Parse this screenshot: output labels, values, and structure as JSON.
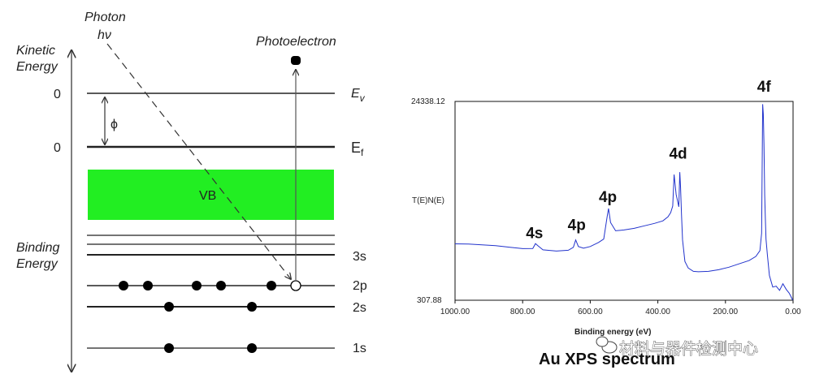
{
  "energy_diagram": {
    "photon_label": "Photon",
    "photon_symbol": "hν",
    "photoelectron_label": "Photoelectron",
    "kinetic_energy_label": [
      "Kinetic",
      "Energy"
    ],
    "binding_energy_label": [
      "Binding",
      "Energy"
    ],
    "zero_labels": [
      "0",
      "0"
    ],
    "vacuum_level_label": "E",
    "vacuum_level_subscript": "v",
    "fermi_level_label": "E",
    "fermi_level_subscript": "f",
    "work_function_symbol": "ϕ",
    "valence_band_label": "VB",
    "valence_band_color": "#22ee22",
    "levels": [
      {
        "label": "3s",
        "electrons": 0
      },
      {
        "label": "2p",
        "electrons": 5,
        "vacancies": 1
      },
      {
        "label": "2s",
        "electrons": 2
      },
      {
        "label": "1s",
        "electrons": 2
      }
    ]
  },
  "chart_data": {
    "type": "line",
    "title": "Au XPS spectrum",
    "xlabel": "Binding energy (eV)",
    "ylabel": "T(E)N(E)",
    "xlim": [
      1000,
      0
    ],
    "ylim": [
      307.88,
      24338.12
    ],
    "x_reversed": true,
    "x_tick_labels": [
      "1000.00",
      "800.00",
      "600.00",
      "400.00",
      "200.00",
      "0.00"
    ],
    "y_tick_labels": [
      "24338.12",
      "307.88"
    ],
    "line_color": "#2233cc",
    "grid": false,
    "series": [
      {
        "x": [
          1000,
          960,
          920,
          880,
          840,
          800,
          770,
          762,
          755,
          740,
          700,
          665,
          650,
          643,
          635,
          620,
          600,
          575,
          560,
          550,
          546,
          540,
          525,
          500,
          470,
          440,
          410,
          385,
          370,
          362,
          356,
          352,
          346,
          338,
          335,
          333,
          330,
          327,
          320,
          310,
          295,
          280,
          250,
          220,
          190,
          160,
          130,
          110,
          98,
          93,
          90,
          88,
          86,
          84,
          82,
          80,
          76,
          70,
          60,
          50,
          40,
          30,
          20,
          12,
          8,
          5,
          2,
          0
        ],
        "y": [
          7120,
          7100,
          7000,
          6900,
          6720,
          6550,
          6560,
          7150,
          6900,
          6400,
          6250,
          6350,
          6700,
          7600,
          6800,
          6600,
          6800,
          7300,
          7700,
          10400,
          11400,
          9700,
          8700,
          8800,
          9000,
          9300,
          9600,
          9900,
          10400,
          10900,
          11700,
          15500,
          13100,
          11600,
          15800,
          14100,
          10700,
          7600,
          5000,
          4200,
          3800,
          3750,
          3800,
          4000,
          4300,
          4700,
          5100,
          5600,
          6300,
          8400,
          24000,
          22800,
          19200,
          13000,
          10200,
          7700,
          5800,
          3300,
          1900,
          2000,
          1500,
          2300,
          1600,
          1200,
          900,
          650,
          400,
          350
        ]
      }
    ],
    "annotations": [
      {
        "text": "4s",
        "x": 765,
        "y": 7800
      },
      {
        "text": "4p",
        "x": 640,
        "y": 8800
      },
      {
        "text": "4p",
        "x": 548,
        "y": 12200
      },
      {
        "text": "4d",
        "x": 340,
        "y": 17400
      },
      {
        "text": "4f",
        "x": 86,
        "y": 25500
      }
    ]
  },
  "watermark": "材料与器件检测中心"
}
